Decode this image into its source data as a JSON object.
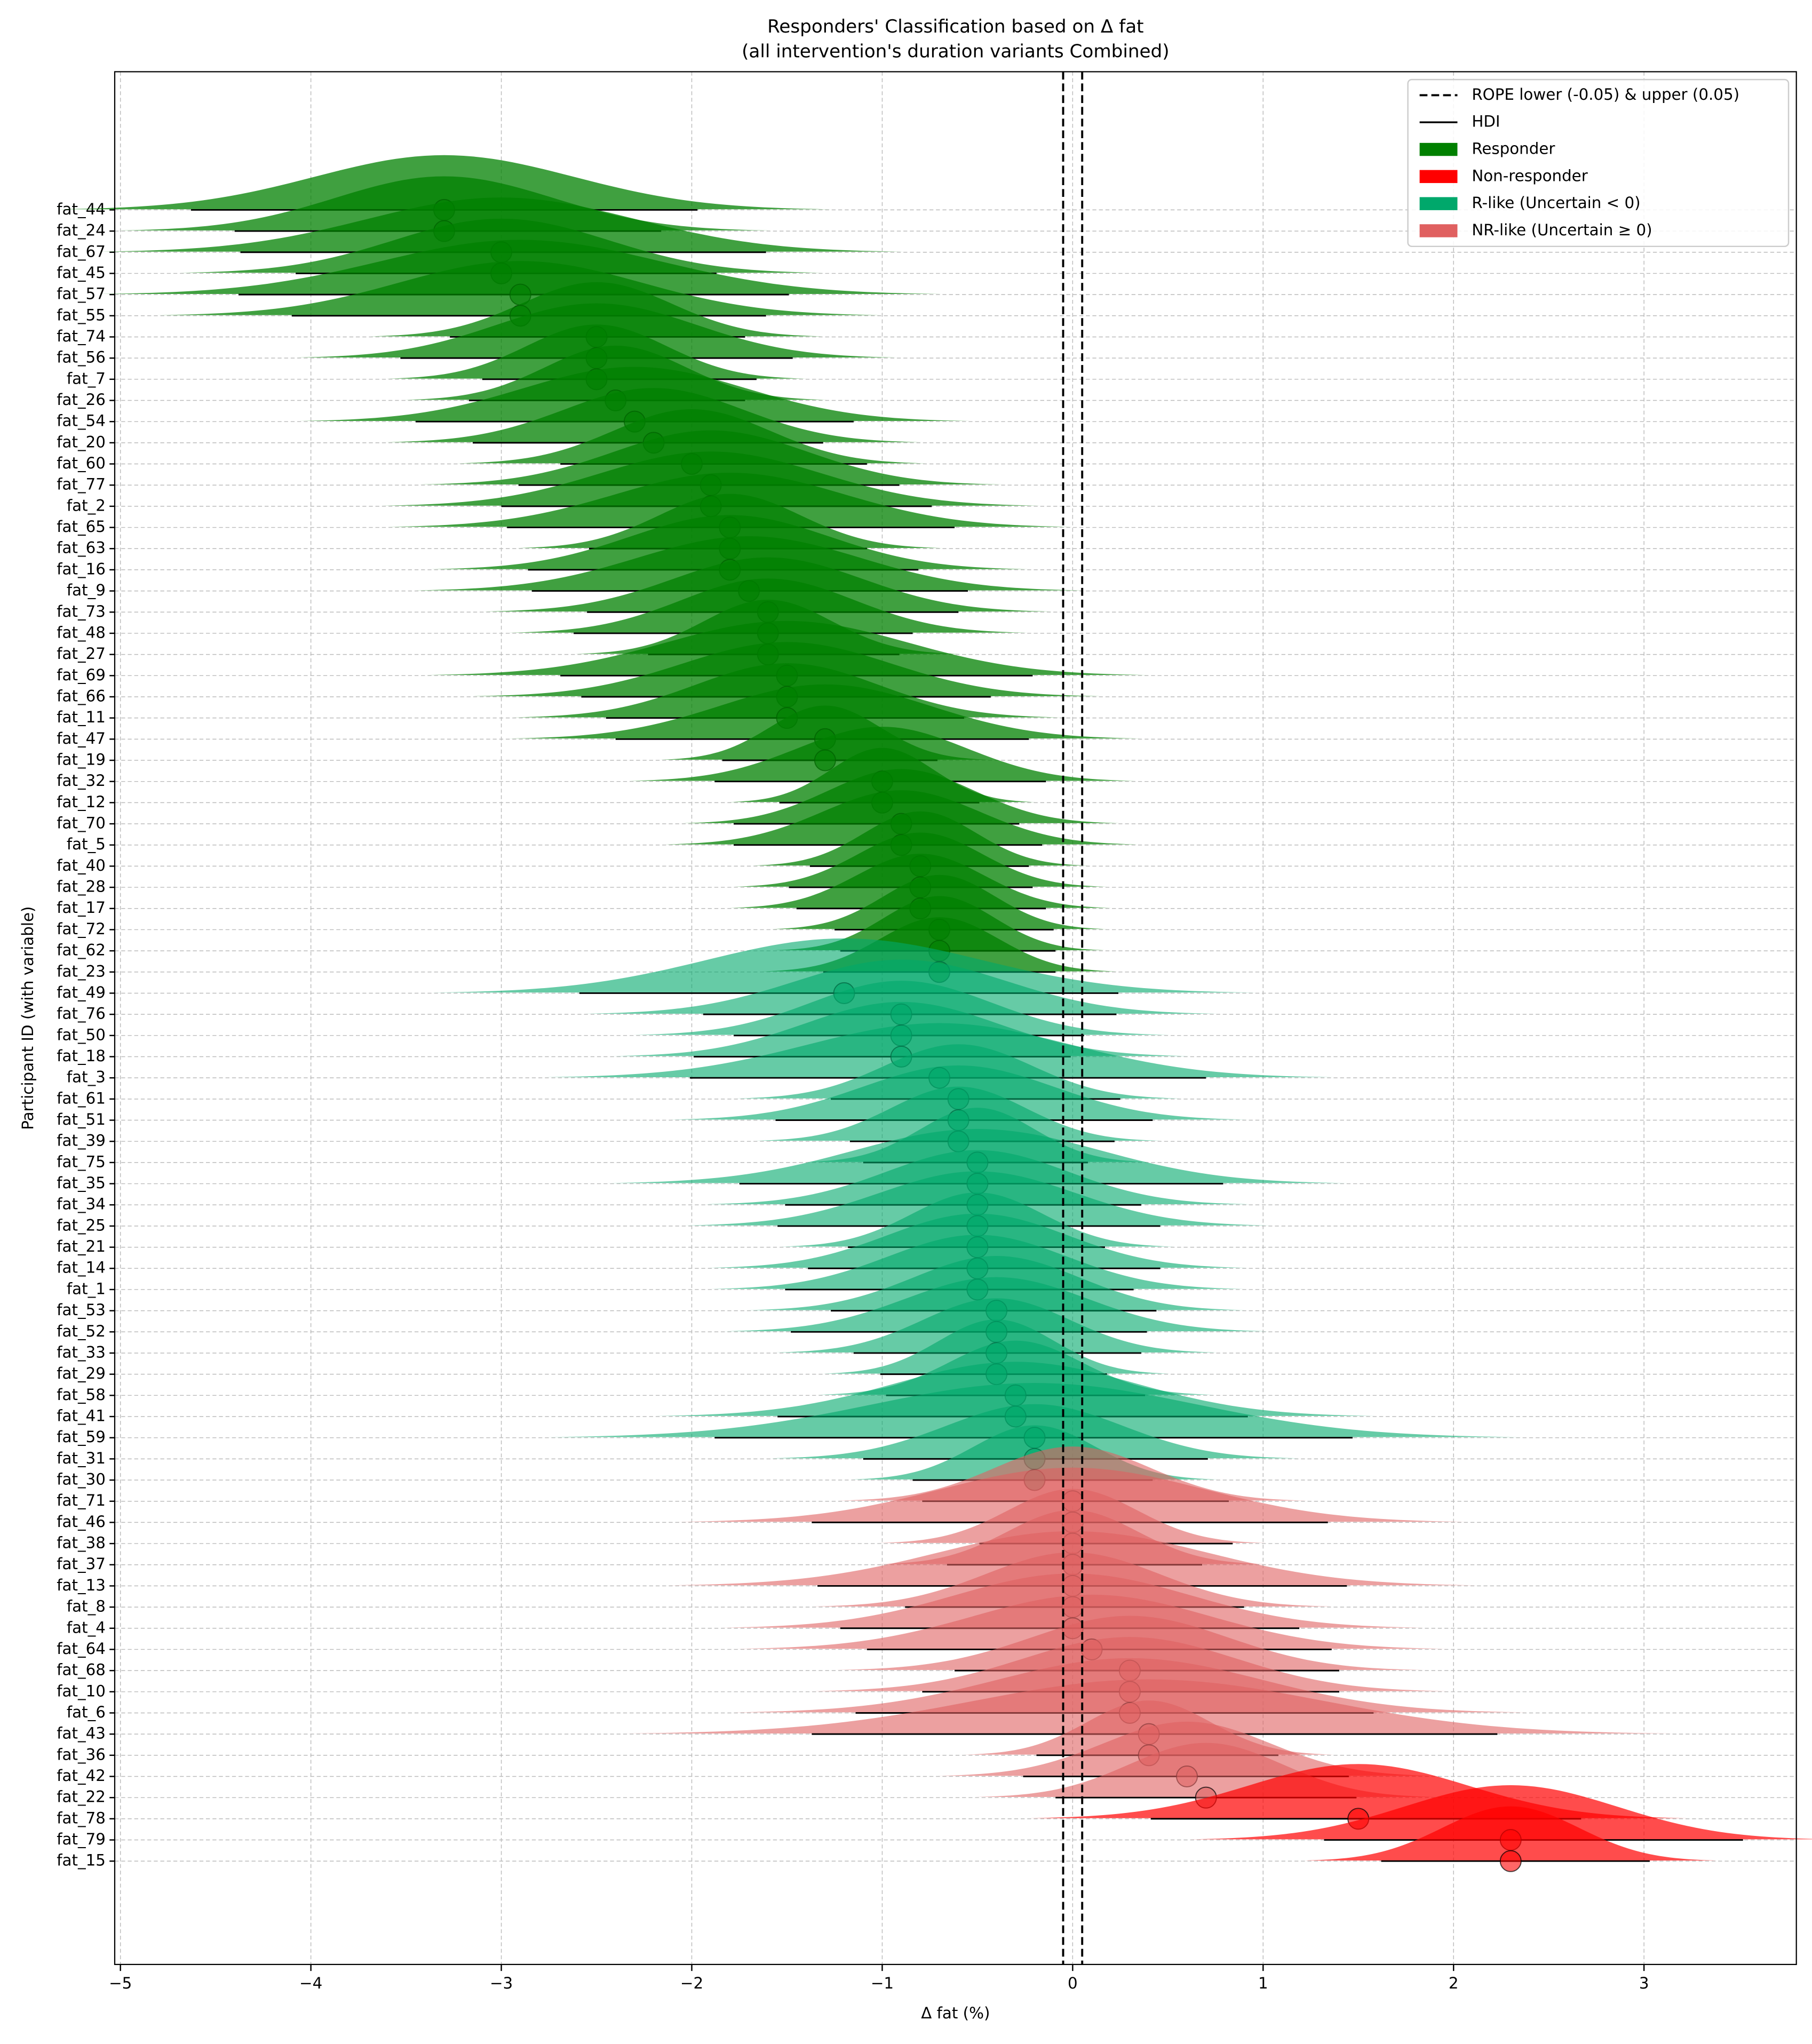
{
  "chart_data": {
    "type": "ridgeline",
    "title": "Responders' Classification based on Δ fat",
    "subtitle": "(all intervention's duration variants Combined)",
    "x_label": "Δ fat (%)",
    "y_label": "Participant ID (with variable)",
    "xlim": [
      -5.03,
      3.8
    ],
    "xticks": [
      {
        "value": -5,
        "label": "−5"
      },
      {
        "value": -4,
        "label": "−4"
      },
      {
        "value": -3,
        "label": "−3"
      },
      {
        "value": -2,
        "label": "−2"
      },
      {
        "value": -1,
        "label": "−1"
      },
      0,
      1,
      2,
      3
    ],
    "grid": true,
    "rope": [
      -0.05,
      0.05
    ],
    "rope_label": "ROPE lower (-0.05) & upper (0.05)",
    "hdi_label": "HDI",
    "legend_position": "upper right",
    "groups": [
      {
        "name": "Responder",
        "color": "#008000"
      },
      {
        "name": "Non-responder",
        "color": "#ff0000"
      },
      {
        "name": "R-like (Uncertain < 0)",
        "color": "#00a86b"
      },
      {
        "name": "NR-like (Uncertain ≥ 0)",
        "color": "#e06060"
      }
    ],
    "categories": [
      "fat_44",
      "fat_24",
      "fat_67",
      "fat_45",
      "fat_57",
      "fat_55",
      "fat_74",
      "fat_56",
      "fat_7",
      "fat_26",
      "fat_54",
      "fat_20",
      "fat_60",
      "fat_77",
      "fat_2",
      "fat_65",
      "fat_63",
      "fat_16",
      "fat_9",
      "fat_73",
      "fat_48",
      "fat_27",
      "fat_69",
      "fat_66",
      "fat_11",
      "fat_47",
      "fat_19",
      "fat_32",
      "fat_12",
      "fat_70",
      "fat_5",
      "fat_40",
      "fat_28",
      "fat_17",
      "fat_72",
      "fat_62",
      "fat_23",
      "fat_49",
      "fat_76",
      "fat_50",
      "fat_18",
      "fat_3",
      "fat_61",
      "fat_51",
      "fat_39",
      "fat_75",
      "fat_35",
      "fat_34",
      "fat_25",
      "fat_21",
      "fat_14",
      "fat_1",
      "fat_53",
      "fat_52",
      "fat_33",
      "fat_29",
      "fat_58",
      "fat_41",
      "fat_59",
      "fat_31",
      "fat_30",
      "fat_71",
      "fat_46",
      "fat_38",
      "fat_37",
      "fat_13",
      "fat_8",
      "fat_4",
      "fat_64",
      "fat_68",
      "fat_10",
      "fat_6",
      "fat_43",
      "fat_36",
      "fat_42",
      "fat_22",
      "fat_78",
      "fat_79",
      "fat_15"
    ],
    "values": [
      -3.3,
      -3.3,
      -3.0,
      -3.0,
      -2.9,
      -2.9,
      -2.5,
      -2.5,
      -2.5,
      -2.4,
      -2.3,
      -2.2,
      -2.0,
      -1.9,
      -1.9,
      -1.8,
      -1.8,
      -1.8,
      -1.7,
      -1.6,
      -1.6,
      -1.6,
      -1.5,
      -1.5,
      -1.5,
      -1.3,
      -1.3,
      -1.0,
      -1.0,
      -0.9,
      -0.9,
      -0.8,
      -0.8,
      -0.8,
      -0.7,
      -0.7,
      -0.7,
      -1.2,
      -0.9,
      -0.9,
      -0.9,
      -0.7,
      -0.6,
      -0.6,
      -0.6,
      -0.5,
      -0.5,
      -0.5,
      -0.5,
      -0.5,
      -0.5,
      -0.5,
      -0.4,
      -0.4,
      -0.4,
      -0.4,
      -0.3,
      -0.3,
      -0.2,
      -0.2,
      -0.2,
      0.0,
      0.0,
      0.0,
      0.0,
      0.0,
      0.0,
      0.0,
      0.1,
      0.3,
      0.3,
      0.3,
      0.4,
      0.4,
      0.6,
      0.7,
      1.5,
      2.3,
      2.3
    ],
    "hdi_lower": [
      -4.63,
      -4.4,
      -4.37,
      -4.08,
      -4.38,
      -4.1,
      -3.27,
      -3.53,
      -3.1,
      -3.17,
      -3.45,
      -3.15,
      -2.69,
      -2.91,
      -3.0,
      -2.97,
      -2.54,
      -2.86,
      -2.84,
      -2.55,
      -2.62,
      -2.23,
      -2.69,
      -2.58,
      -2.45,
      -2.4,
      -1.84,
      -1.88,
      -1.54,
      -1.78,
      -1.78,
      -1.38,
      -1.49,
      -1.45,
      -1.25,
      -1.22,
      -1.31,
      -2.59,
      -1.94,
      -1.78,
      -1.99,
      -2.01,
      -1.27,
      -1.56,
      -1.17,
      -1.1,
      -1.75,
      -1.51,
      -1.55,
      -1.18,
      -1.39,
      -1.51,
      -1.27,
      -1.48,
      -1.15,
      -1.01,
      -0.98,
      -1.55,
      -1.88,
      -1.1,
      -0.84,
      -0.79,
      -1.37,
      -0.49,
      -0.66,
      -1.34,
      -0.88,
      -1.22,
      -1.08,
      -0.62,
      -0.79,
      -1.14,
      -1.37,
      -0.19,
      -0.26,
      -0.09,
      0.41,
      1.32,
      1.62
    ],
    "hdi_upper": [
      -1.97,
      -2.16,
      -1.61,
      -1.87,
      -1.49,
      -1.61,
      -1.72,
      -1.47,
      -1.66,
      -1.72,
      -1.15,
      -1.31,
      -1.08,
      -0.91,
      -0.74,
      -0.62,
      -1.08,
      -0.81,
      -0.55,
      -0.6,
      -0.84,
      -0.91,
      -0.21,
      -0.43,
      -0.57,
      -0.23,
      -0.71,
      -0.14,
      -0.49,
      -0.28,
      -0.16,
      -0.23,
      -0.21,
      -0.14,
      -0.1,
      -0.09,
      -0.09,
      0.24,
      0.23,
      0.06,
      -0.01,
      0.7,
      0.25,
      0.42,
      0.22,
      0.08,
      0.79,
      0.36,
      0.46,
      0.17,
      0.46,
      0.32,
      0.44,
      0.39,
      0.36,
      0.18,
      0.38,
      0.92,
      1.47,
      0.71,
      0.42,
      0.82,
      1.34,
      0.84,
      0.68,
      1.44,
      0.9,
      1.19,
      1.36,
      1.4,
      1.4,
      1.58,
      2.23,
      1.08,
      1.45,
      1.49,
      2.67,
      3.52,
      3.03
    ],
    "classes": [
      0,
      0,
      0,
      0,
      0,
      0,
      0,
      0,
      0,
      0,
      0,
      0,
      0,
      0,
      0,
      0,
      0,
      0,
      0,
      0,
      0,
      0,
      0,
      0,
      0,
      0,
      0,
      0,
      0,
      0,
      0,
      0,
      0,
      0,
      0,
      0,
      0,
      2,
      2,
      2,
      2,
      2,
      2,
      2,
      2,
      2,
      2,
      2,
      2,
      2,
      2,
      2,
      2,
      2,
      2,
      2,
      2,
      2,
      2,
      2,
      2,
      3,
      3,
      3,
      3,
      3,
      3,
      3,
      3,
      3,
      3,
      3,
      3,
      3,
      3,
      3,
      1,
      1,
      1
    ]
  }
}
